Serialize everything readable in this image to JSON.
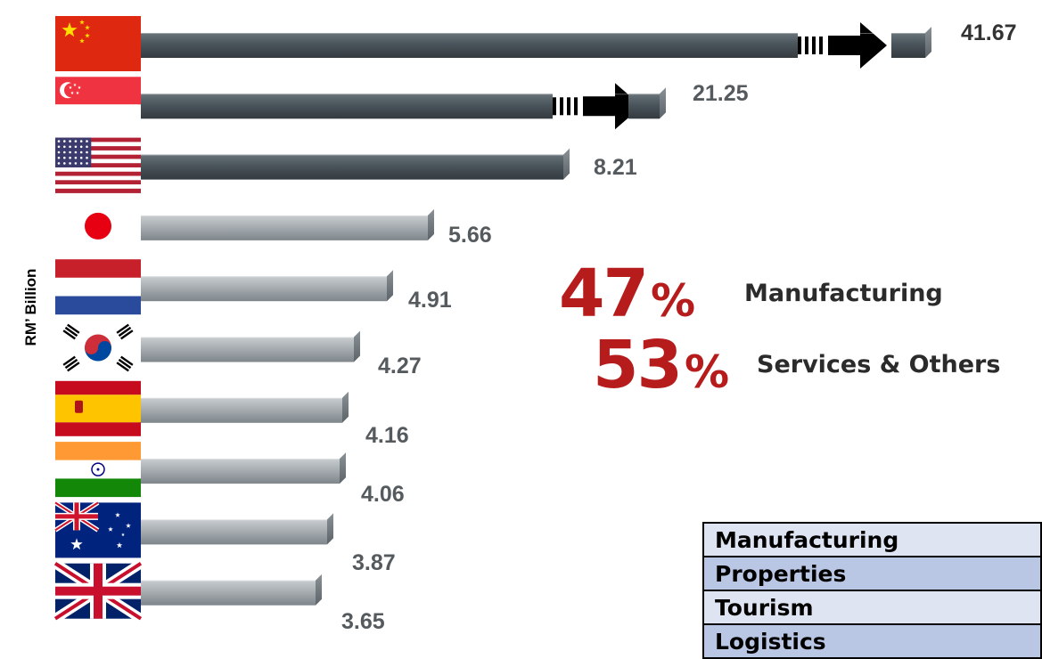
{
  "chart_data": {
    "type": "bar",
    "orientation": "horizontal",
    "ylabel": "RM’ Billion",
    "categories": [
      "China",
      "Singapore",
      "United States",
      "Japan",
      "Netherlands",
      "South Korea",
      "Spain",
      "India",
      "Australia",
      "United Kingdom"
    ],
    "values": [
      41.67,
      21.25,
      8.21,
      5.66,
      4.91,
      4.27,
      4.16,
      4.06,
      3.87,
      3.65
    ],
    "value_labels": [
      "41.67",
      "21.25",
      "8.21",
      "5.66",
      "4.91",
      "4.27",
      "4.16",
      "4.06",
      "3.87",
      "3.65"
    ],
    "broken_bars": [
      "China",
      "Singapore"
    ],
    "colors": {
      "highlight_bar": "#4a545b",
      "regular_bar": "#a7adb1",
      "percent": "#b71c1c"
    }
  },
  "breakdown": [
    {
      "percent": "47",
      "symbol": "%",
      "label": "Manufacturing"
    },
    {
      "percent": "53",
      "symbol": "%",
      "label": "Services & Others"
    }
  ],
  "sector_table": {
    "rows": [
      "Manufacturing",
      "Properties",
      "Tourism",
      "Logistics"
    ]
  },
  "flags": [
    "china-flag",
    "singapore-flag",
    "usa-flag",
    "japan-flag",
    "netherlands-flag",
    "south-korea-flag",
    "spain-flag",
    "india-flag",
    "australia-flag",
    "uk-flag"
  ]
}
